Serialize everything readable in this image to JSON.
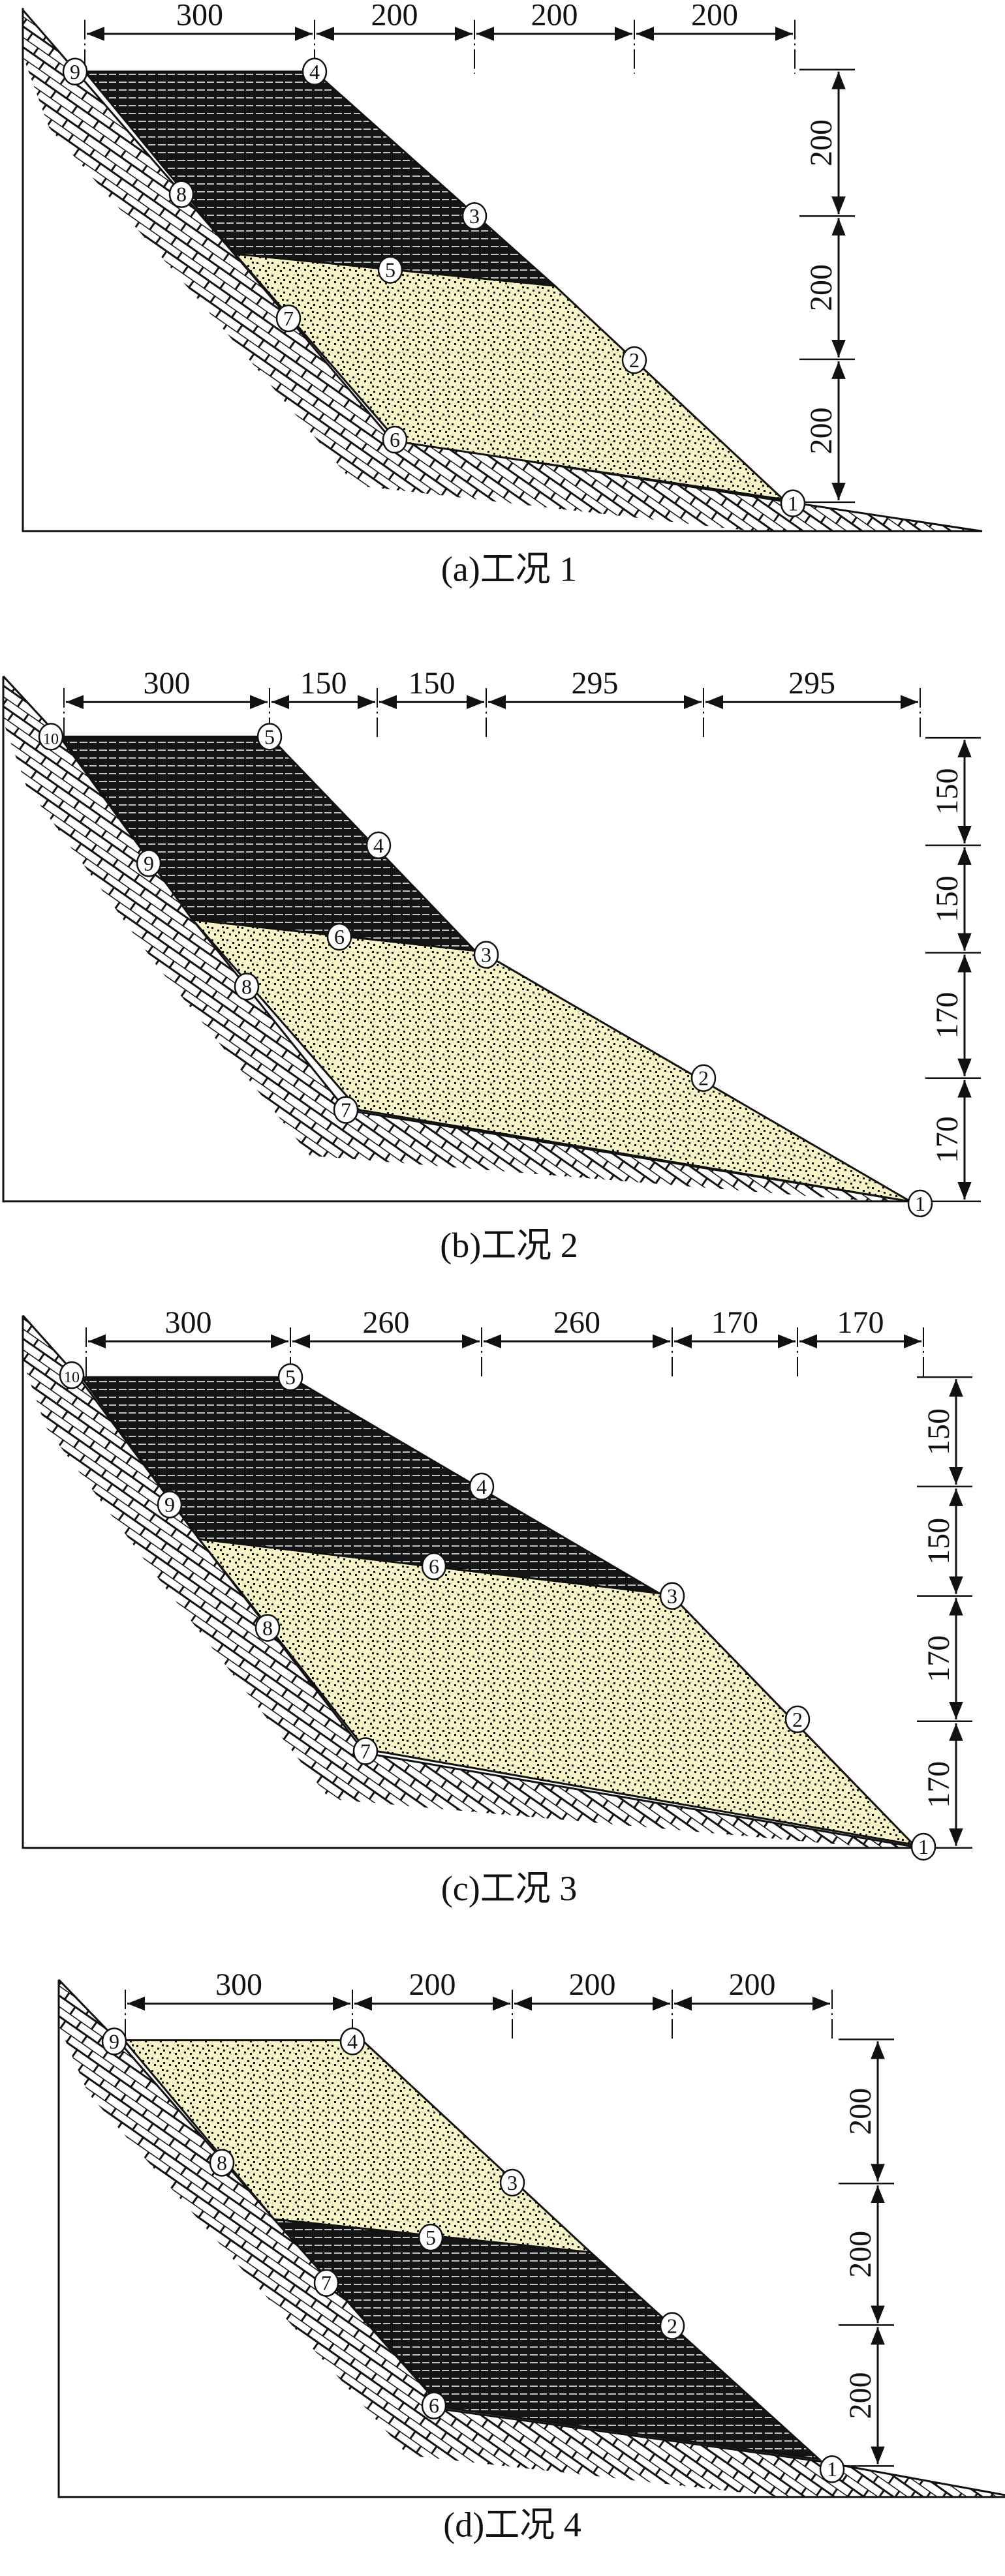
{
  "figure": {
    "panels": [
      {
        "caption": "(a)工况 1",
        "top_dims": [
          "300",
          "200",
          "200",
          "200"
        ],
        "right_dims": [
          "200",
          "200",
          "200"
        ],
        "nodes": [
          "1",
          "2",
          "3",
          "4",
          "5",
          "6",
          "7",
          "8",
          "9"
        ]
      },
      {
        "caption": "(b)工况 2",
        "top_dims": [
          "300",
          "150",
          "150",
          "295",
          "295"
        ],
        "right_dims": [
          "150",
          "150",
          "170",
          "170"
        ],
        "nodes": [
          "1",
          "2",
          "3",
          "4",
          "5",
          "6",
          "7",
          "8",
          "9",
          "10"
        ]
      },
      {
        "caption": "(c)工况 3",
        "top_dims": [
          "300",
          "260",
          "260",
          "170",
          "170"
        ],
        "right_dims": [
          "150",
          "150",
          "170",
          "170"
        ],
        "nodes": [
          "1",
          "2",
          "3",
          "4",
          "5",
          "6",
          "7",
          "8",
          "9",
          "10"
        ]
      },
      {
        "caption": "(d)工况 4",
        "top_dims": [
          "300",
          "200",
          "200",
          "200"
        ],
        "right_dims": [
          "200",
          "200",
          "200"
        ],
        "nodes": [
          "1",
          "2",
          "3",
          "4",
          "5",
          "6",
          "7",
          "8",
          "9"
        ]
      }
    ],
    "colors": {
      "sand": "#f6f4c6",
      "clay": "#141414",
      "line": "#111111"
    }
  }
}
